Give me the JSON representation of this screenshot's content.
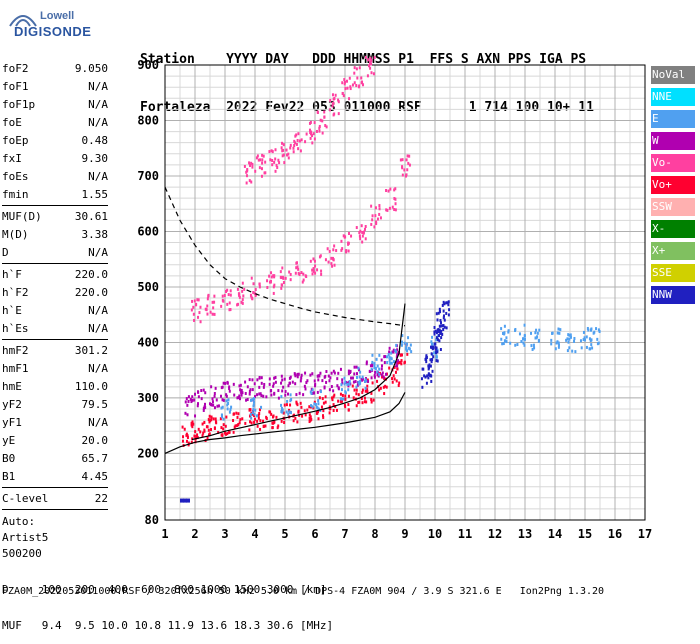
{
  "logo": {
    "line1": "Lowell",
    "line2": "DIGISONDE"
  },
  "header": {
    "labels": "Station    YYYY DAY   DDD HHMMSS P1  FFS S AXN PPS IGA PS",
    "values": "Fortaleza  2022 Fev22 053 011000 RSF      1 714 100 10+ 11"
  },
  "params": {
    "group1": [
      {
        "k": "foF2",
        "v": "9.050"
      },
      {
        "k": "foF1",
        "v": "N/A"
      },
      {
        "k": "foF1p",
        "v": "N/A"
      },
      {
        "k": "foE",
        "v": "N/A"
      },
      {
        "k": "foEp",
        "v": "0.48"
      },
      {
        "k": "fxI",
        "v": "9.30"
      },
      {
        "k": "foEs",
        "v": "N/A"
      },
      {
        "k": "fmin",
        "v": "1.55"
      }
    ],
    "group2": [
      {
        "k": "MUF(D)",
        "v": "30.61"
      },
      {
        "k": "M(D)",
        "v": "3.38"
      },
      {
        "k": "D",
        "v": "N/A"
      }
    ],
    "group3": [
      {
        "k": "h`F",
        "v": "220.0"
      },
      {
        "k": "h`F2",
        "v": "220.0"
      },
      {
        "k": "h`E",
        "v": "N/A"
      },
      {
        "k": "h`Es",
        "v": "N/A"
      }
    ],
    "group4": [
      {
        "k": "hmF2",
        "v": "301.2"
      },
      {
        "k": "hmF1",
        "v": "N/A"
      },
      {
        "k": "hmE",
        "v": "110.0"
      },
      {
        "k": "yF2",
        "v": "79.5"
      },
      {
        "k": "yF1",
        "v": "N/A"
      },
      {
        "k": "yE",
        "v": "20.0"
      },
      {
        "k": "B0",
        "v": "65.7"
      },
      {
        "k": "B1",
        "v": "4.45"
      }
    ],
    "group5": [
      {
        "k": "C-level",
        "v": "22"
      }
    ],
    "auto": [
      "Auto:",
      "Artist5",
      "500200"
    ]
  },
  "legend": [
    {
      "label": "NoVal",
      "color": "#808080"
    },
    {
      "label": "NNE",
      "color": "#00e0ff"
    },
    {
      "label": "E",
      "color": "#50a0f0"
    },
    {
      "label": "W",
      "color": "#b000b0"
    },
    {
      "label": "Vo-",
      "color": "#ff40a0"
    },
    {
      "label": "Vo+",
      "color": "#ff0030"
    },
    {
      "label": "SSW",
      "color": "#ffb0b0"
    },
    {
      "label": "X-",
      "color": "#008000"
    },
    {
      "label": "X+",
      "color": "#80c060"
    },
    {
      "label": "SSE",
      "color": "#d0d000"
    },
    {
      "label": "NNW",
      "color": "#2020c0"
    }
  ],
  "footer": {
    "line1": "D     100  200  400  600  800 1000 1500 3000 [km]",
    "line2": "MUF   9.4  9.5 10.0 10.8 11.9 13.6 18.3 30.6 [MHz]",
    "line3": "FZA0M_2022053011000.RSF / 320fx256h 50 kHz 5.0 km / DPS-4 FZA0M 904 / 3.9 S 321.6 E   Ion2Png 1.3.20"
  },
  "chart_data": {
    "type": "scatter",
    "xlim": [
      1,
      17
    ],
    "ylim": [
      80,
      900
    ],
    "xticks": [
      1,
      2,
      3,
      4,
      5,
      6,
      7,
      8,
      9,
      10,
      11,
      12,
      13,
      14,
      15,
      16,
      17
    ],
    "yticks": [
      80,
      200,
      300,
      400,
      500,
      600,
      700,
      800,
      900
    ],
    "grid": true,
    "series": [
      {
        "kind": "cloud",
        "color": "#ff0030",
        "x": [
          1.7,
          2.0,
          2.3,
          2.6,
          3.0,
          3.4,
          3.8,
          4.2,
          4.6,
          5.0,
          5.4,
          5.8,
          6.2,
          6.6,
          7.0,
          7.4,
          7.8,
          8.2,
          8.6,
          8.9
        ],
        "y": [
          235,
          240,
          245,
          250,
          255,
          258,
          262,
          265,
          268,
          272,
          276,
          280,
          285,
          290,
          298,
          305,
          315,
          330,
          345,
          380
        ]
      },
      {
        "kind": "cloud",
        "color": "#b000b0",
        "x": [
          1.8,
          2.2,
          2.6,
          3.0,
          3.4,
          3.8,
          4.2,
          4.6,
          5.0,
          5.4,
          5.8,
          6.2,
          6.6,
          7.0,
          7.4,
          7.8,
          8.2,
          8.6
        ],
        "y": [
          290,
          300,
          305,
          312,
          316,
          318,
          320,
          322,
          325,
          328,
          330,
          332,
          335,
          340,
          345,
          350,
          360,
          380
        ]
      },
      {
        "kind": "cloud",
        "color": "#50a0f0",
        "x": [
          3.0,
          4.0,
          5.0,
          6.0,
          7.0,
          7.5,
          8.0,
          8.5,
          9.0,
          10.0,
          12.3,
          12.8,
          13.3,
          14.0,
          14.5,
          15.0,
          15.3
        ],
        "y": [
          280,
          285,
          290,
          300,
          320,
          340,
          360,
          380,
          400,
          395,
          420,
          415,
          410,
          408,
          405,
          410,
          410
        ]
      },
      {
        "kind": "cloud",
        "color": "#ff40a0",
        "x": [
          2.0,
          2.5,
          3.0,
          3.5,
          4.0,
          4.5,
          5.0,
          5.5,
          6.0,
          6.5,
          7.0,
          7.5,
          8.0,
          8.5,
          9.0
        ],
        "y": [
          460,
          470,
          480,
          490,
          500,
          510,
          520,
          530,
          545,
          560,
          580,
          600,
          630,
          660,
          720
        ]
      },
      {
        "kind": "cloud",
        "color": "#ff40a0",
        "x": [
          3.8,
          4.2,
          4.6,
          5.0,
          5.4,
          5.8,
          6.2,
          6.6,
          7.0,
          7.4,
          7.8
        ],
        "y": [
          710,
          720,
          730,
          745,
          760,
          780,
          800,
          830,
          860,
          880,
          900
        ]
      },
      {
        "kind": "cloud",
        "color": "#2020c0",
        "x": [
          9.7,
          9.8,
          9.9,
          10.0,
          10.1,
          10.2,
          10.3
        ],
        "y": [
          340,
          360,
          380,
          400,
          420,
          440,
          460
        ]
      },
      {
        "kind": "line",
        "name": "",
        "color": "#000000",
        "dash": true,
        "x": [
          1.0,
          1.5,
          2.0,
          2.5,
          3.0,
          3.5,
          4.0,
          4.5,
          5.0,
          5.5,
          6.0,
          6.5,
          7.0,
          7.5,
          8.0,
          8.5,
          9.0
        ],
        "y": [
          680,
          620,
          575,
          540,
          515,
          500,
          488,
          478,
          470,
          462,
          455,
          450,
          445,
          441,
          437,
          434,
          430
        ]
      },
      {
        "kind": "line",
        "name": "",
        "color": "#000000",
        "dash": false,
        "x": [
          1.0,
          1.5,
          2.0,
          2.5,
          3.0,
          3.5,
          4.0,
          4.5,
          5.0,
          5.5,
          6.0,
          6.5,
          7.0,
          7.5,
          8.0,
          8.5,
          8.8,
          9.0
        ],
        "y": [
          200,
          212,
          220,
          225,
          228,
          232,
          235,
          238,
          241,
          244,
          247,
          251,
          255,
          260,
          265,
          275,
          290,
          310
        ]
      },
      {
        "kind": "line",
        "name": "",
        "color": "#000000",
        "dash": false,
        "x": [
          1.9,
          2.5,
          3.0,
          3.5,
          4.0,
          4.5,
          5.0,
          5.5,
          6.0,
          6.5,
          7.0,
          7.5,
          8.0,
          8.5,
          8.8,
          9.0
        ],
        "y": [
          225,
          232,
          240,
          246,
          252,
          258,
          264,
          270,
          276,
          283,
          291,
          300,
          315,
          340,
          380,
          470
        ]
      },
      {
        "kind": "point",
        "color": "#2020c0",
        "x": [
          1.5,
          1.6,
          1.7
        ],
        "y": [
          115,
          115,
          115
        ]
      }
    ]
  }
}
